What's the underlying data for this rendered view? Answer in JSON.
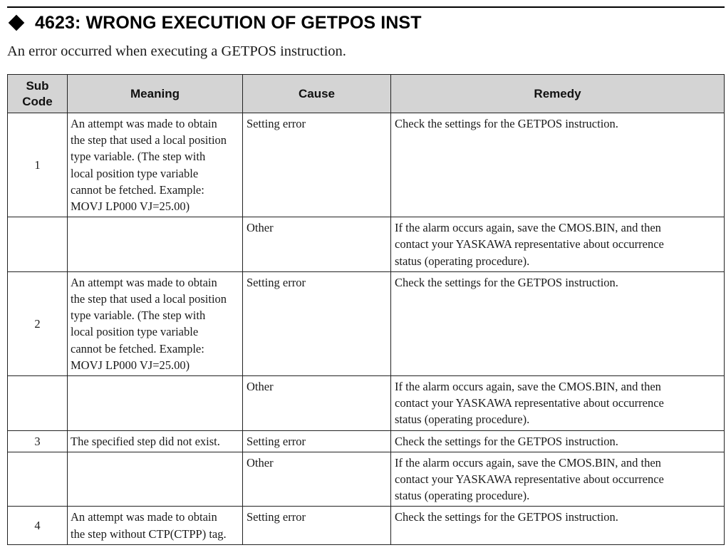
{
  "heading": {
    "title": "4623: WRONG EXECUTION OF GETPOS INST"
  },
  "intro": "An error occurred when executing a GETPOS instruction.",
  "table": {
    "headers": {
      "sub_code_line1": "Sub",
      "sub_code_line2": "Code",
      "meaning": "Meaning",
      "cause": "Cause",
      "remedy": "Remedy"
    },
    "rows": [
      {
        "sub_code": "1",
        "meaning_lines": [
          "An attempt was made to obtain",
          "the step that used a local position",
          "type variable. (The step with",
          "local position type variable",
          "cannot be fetched. Example:",
          "MOVJ LP000 VJ=25.00)"
        ],
        "cause": "Setting error",
        "remedy_lines": [
          "Check the settings for the GETPOS instruction."
        ]
      },
      {
        "sub_code": "",
        "meaning_lines": [],
        "cause": "Other",
        "remedy_lines": [
          "If the alarm occurs again, save the CMOS.BIN, and then",
          "contact your YASKAWA representative about occurrence",
          "status (operating procedure)."
        ]
      },
      {
        "sub_code": "2",
        "meaning_lines": [
          "An attempt was made to obtain",
          "the step that used a local position",
          "type variable. (The step with",
          "local position type variable",
          "cannot be fetched. Example:",
          "MOVJ LP000 VJ=25.00)"
        ],
        "cause": "Setting error",
        "remedy_lines": [
          "Check the settings for the GETPOS instruction."
        ]
      },
      {
        "sub_code": "",
        "meaning_lines": [],
        "cause": "Other",
        "remedy_lines": [
          "If the alarm occurs again, save the CMOS.BIN, and then",
          "contact your YASKAWA representative about occurrence",
          "status (operating procedure)."
        ]
      },
      {
        "sub_code": "3",
        "meaning_lines": [
          "The specified step did not exist."
        ],
        "cause": "Setting error",
        "remedy_lines": [
          "Check the settings for the GETPOS instruction."
        ]
      },
      {
        "sub_code": "",
        "meaning_lines": [],
        "cause": "Other",
        "remedy_lines": [
          "If the alarm occurs again, save the CMOS.BIN, and then",
          "contact your YASKAWA representative about occurrence",
          "status (operating procedure)."
        ]
      },
      {
        "sub_code": "4",
        "meaning_lines": [
          "An attempt was made to obtain",
          "the step without CTP(CTPP) tag."
        ],
        "cause": "Setting error",
        "remedy_lines": [
          "Check the settings for the GETPOS instruction."
        ]
      }
    ]
  }
}
